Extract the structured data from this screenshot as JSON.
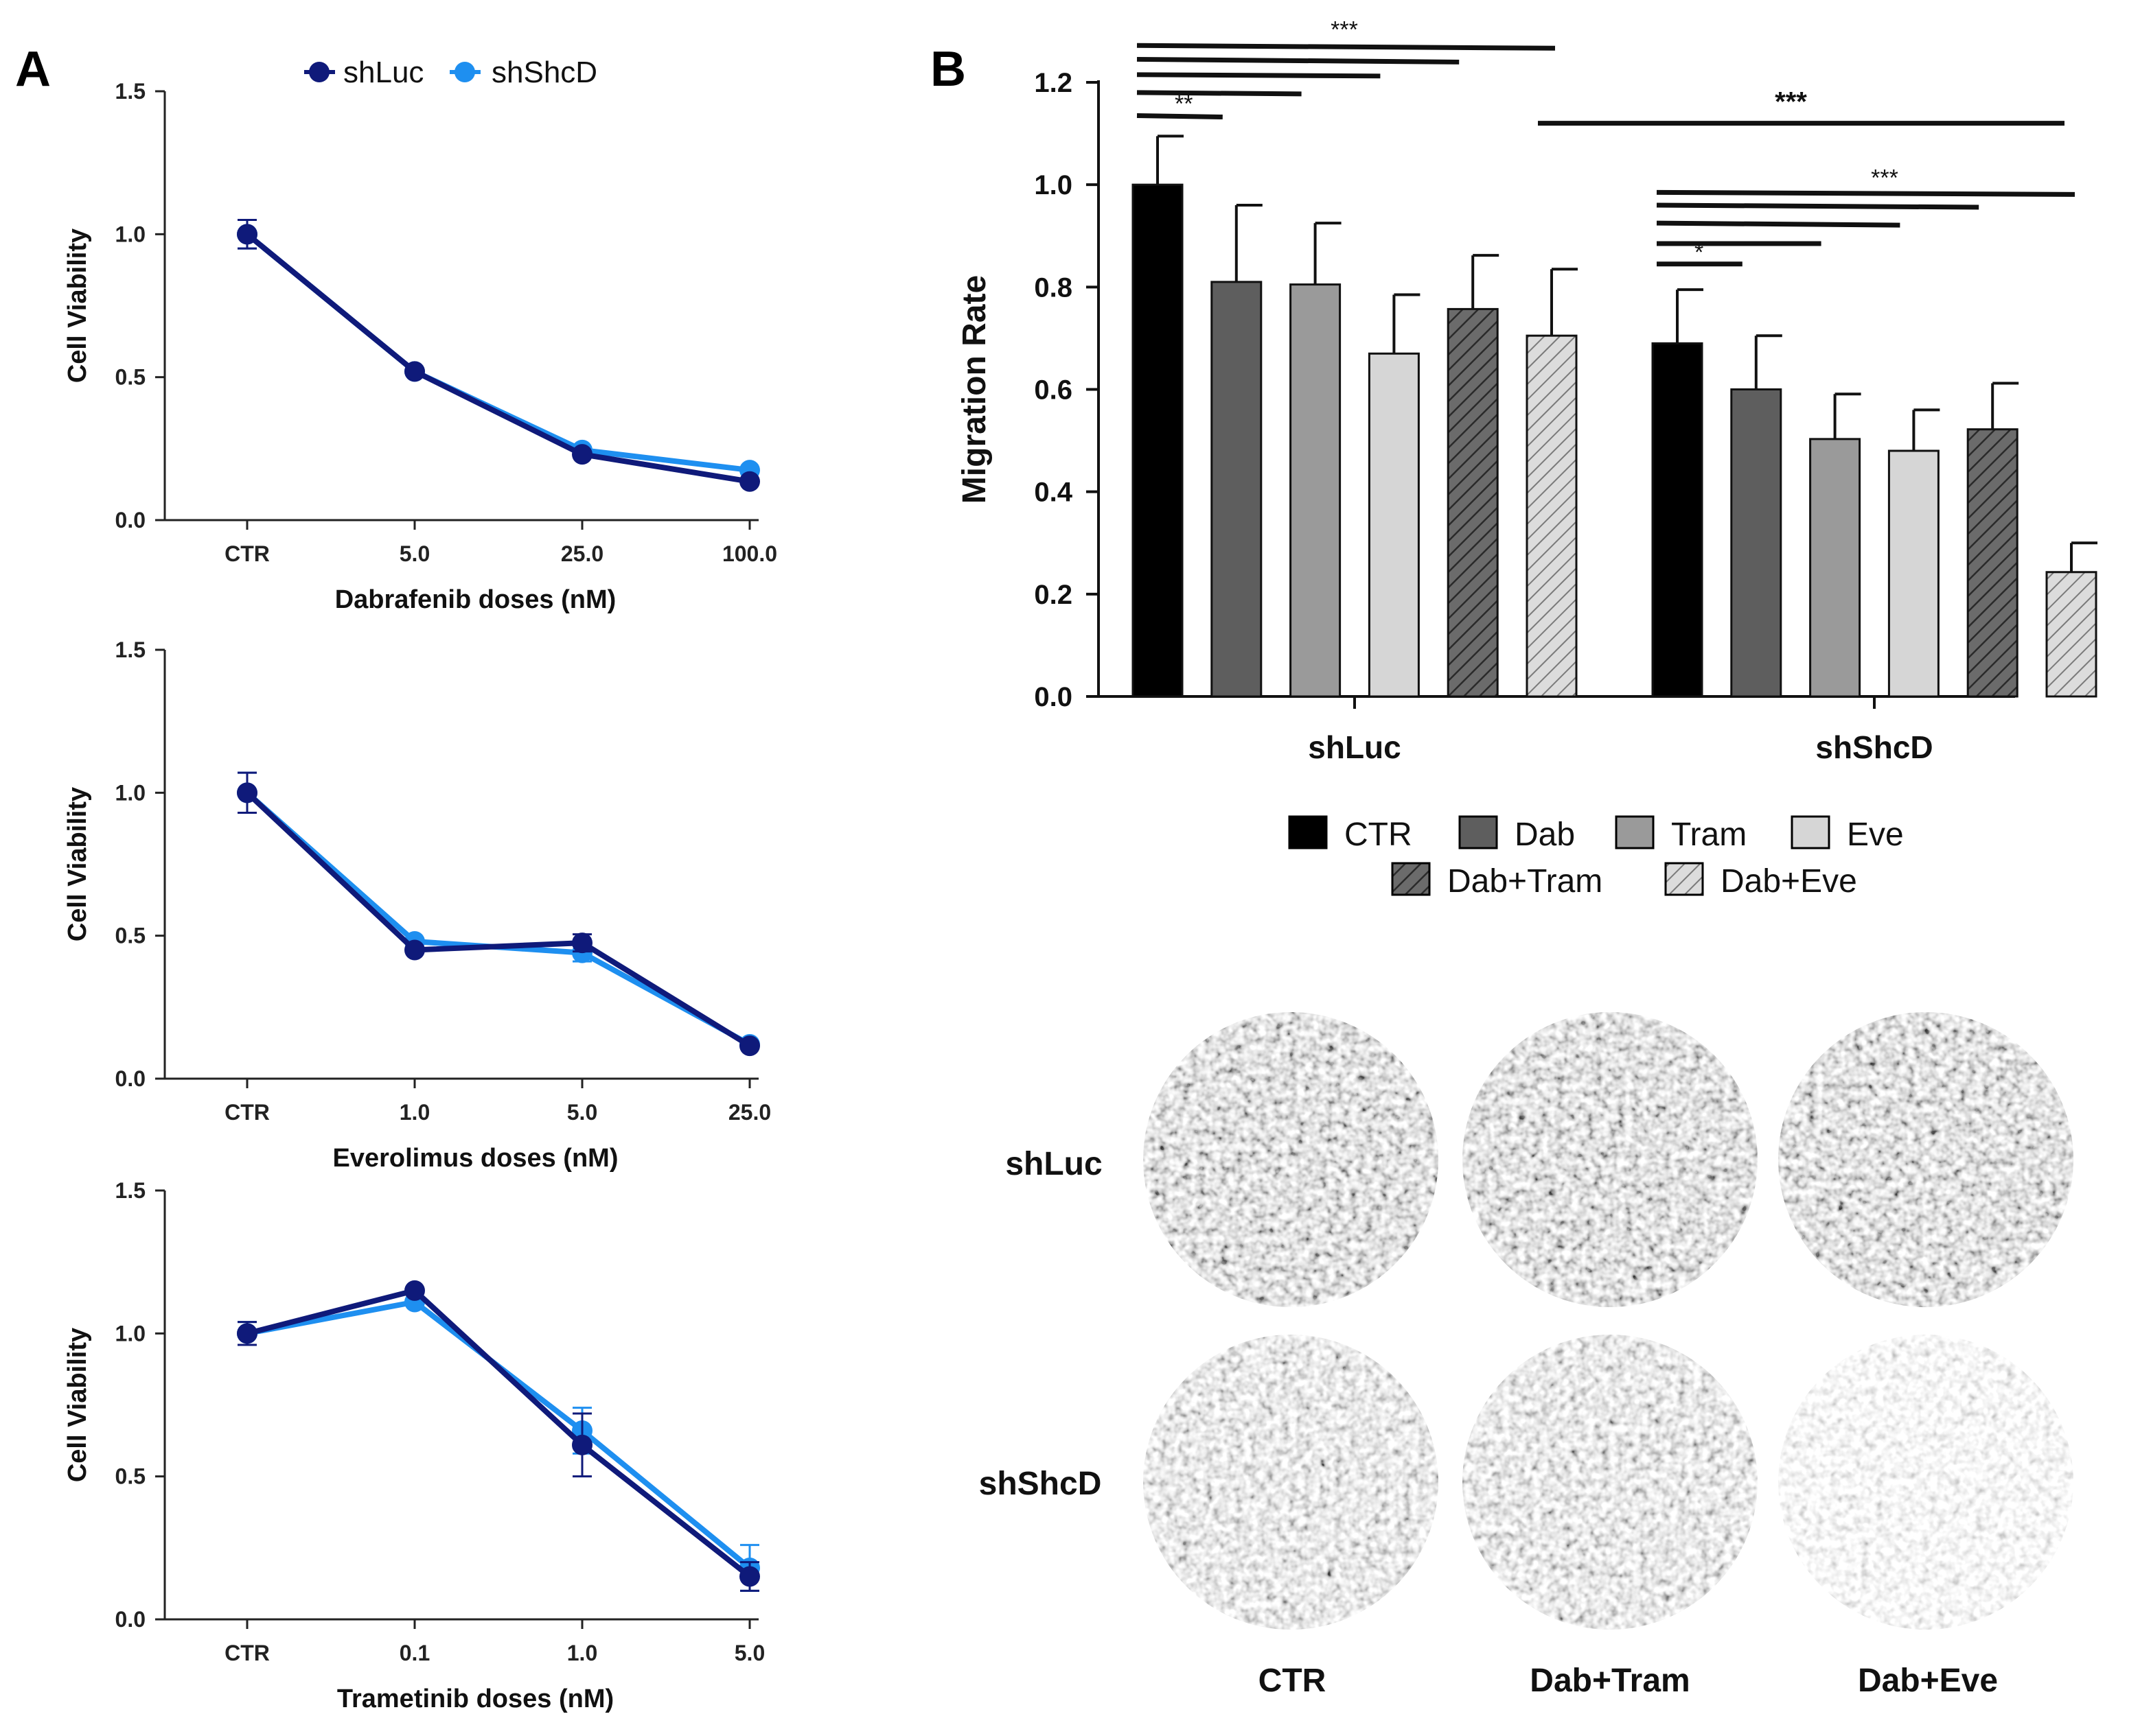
{
  "panels": {
    "a_label": "A",
    "b_label": "B"
  },
  "colors": {
    "shLuc": "#0f1a7a",
    "shShcD": "#1e8ff0",
    "ctr": "#000000",
    "dab": "#5e5e5e",
    "tram": "#9a9a9a",
    "eve": "#d6d6d6"
  },
  "chart_data": [
    {
      "type": "line",
      "panel": "A",
      "title": "",
      "categories": [
        "CTR",
        "5.0",
        "25.0",
        "100.0"
      ],
      "xlabel": "Dabrafenib doses (nM)",
      "ylabel": "Cell Viability",
      "ylim": [
        0,
        1.5
      ],
      "yticks": [
        "0.0",
        "0.5",
        "1.0",
        "1.5"
      ],
      "legend": [
        "shLuc",
        "shShcD"
      ],
      "series": [
        {
          "name": "shLuc",
          "values": [
            1.0,
            0.52,
            0.23,
            0.135
          ],
          "errors": [
            0.05,
            0,
            0,
            0
          ]
        },
        {
          "name": "shShcD",
          "values": [
            1.0,
            0.52,
            0.245,
            0.175
          ],
          "errors": [
            0.05,
            0,
            0,
            0
          ]
        }
      ]
    },
    {
      "type": "line",
      "panel": "A",
      "title": "",
      "categories": [
        "CTR",
        "1.0",
        "5.0",
        "25.0"
      ],
      "xlabel": "Everolimus doses (nM)",
      "ylabel": "Cell Viability",
      "ylim": [
        0,
        1.5
      ],
      "yticks": [
        "0.0",
        "0.5",
        "1.0",
        "1.5"
      ],
      "series": [
        {
          "name": "shLuc",
          "values": [
            1.0,
            0.45,
            0.475,
            0.115
          ],
          "errors": [
            0.07,
            0,
            0.03,
            0
          ]
        },
        {
          "name": "shShcD",
          "values": [
            1.0,
            0.48,
            0.44,
            0.12
          ],
          "errors": [
            0.07,
            0,
            0.03,
            0
          ]
        }
      ]
    },
    {
      "type": "line",
      "panel": "A",
      "title": "",
      "categories": [
        "CTR",
        "0.1",
        "1.0",
        "5.0"
      ],
      "xlabel": "Trametinib doses (nM)",
      "ylabel": "Cell Viability",
      "ylim": [
        0,
        1.5
      ],
      "yticks": [
        "0.0",
        "0.5",
        "1.0",
        "1.5"
      ],
      "series": [
        {
          "name": "shLuc",
          "values": [
            1.0,
            1.15,
            0.61,
            0.15
          ],
          "errors": [
            0.04,
            0,
            0.11,
            0.05
          ]
        },
        {
          "name": "shShcD",
          "values": [
            1.0,
            1.11,
            0.66,
            0.18
          ],
          "errors": [
            0.04,
            0,
            0.08,
            0.08
          ]
        }
      ]
    },
    {
      "type": "bar",
      "panel": "B",
      "title": "",
      "groups": [
        "shLuc",
        "shShcD"
      ],
      "categories": [
        "CTR",
        "Dab",
        "Tram",
        "Eve",
        "Dab+Tram",
        "Dab+Eve"
      ],
      "xlabel": "",
      "ylabel": "Migration Rate",
      "ylim": [
        0,
        1.2
      ],
      "yticks": [
        "0.0",
        "0.2",
        "0.4",
        "0.6",
        "0.8",
        "1.0",
        "1.2"
      ],
      "series": [
        {
          "name": "shLuc",
          "values": [
            1.0,
            0.81,
            0.805,
            0.67,
            0.757,
            0.705
          ],
          "errors": [
            0.095,
            0.15,
            0.12,
            0.115,
            0.105,
            0.13
          ]
        },
        {
          "name": "shShcD",
          "values": [
            0.69,
            0.6,
            0.503,
            0.48,
            0.522,
            0.243
          ],
          "errors": [
            0.105,
            0.105,
            0.088,
            0.08,
            0.09,
            0.057
          ]
        }
      ],
      "significance": [
        {
          "group": "shLuc",
          "label": "**",
          "between": [
            "CTR",
            "Dab"
          ]
        },
        {
          "group": "shLuc",
          "label": "***",
          "between": [
            "CTR",
            "Dab+Eve"
          ]
        },
        {
          "group": "shShcD",
          "label": "*",
          "between": [
            "CTR",
            "Dab"
          ]
        },
        {
          "group": "shShcD",
          "label": "***",
          "between": [
            "CTR",
            "Dab+Eve"
          ]
        },
        {
          "group": "across",
          "label": "***",
          "between": [
            "shLuc Dab+Eve",
            "shShcD Dab+Eve"
          ]
        }
      ],
      "legend": [
        "CTR",
        "Dab",
        "Tram",
        "Eve",
        "Dab+Tram",
        "Dab+Eve"
      ]
    }
  ],
  "image_grid": {
    "rows": [
      "shLuc",
      "shShcD"
    ],
    "columns": [
      "CTR",
      "Dab+Tram",
      "Dab+Eve"
    ]
  }
}
